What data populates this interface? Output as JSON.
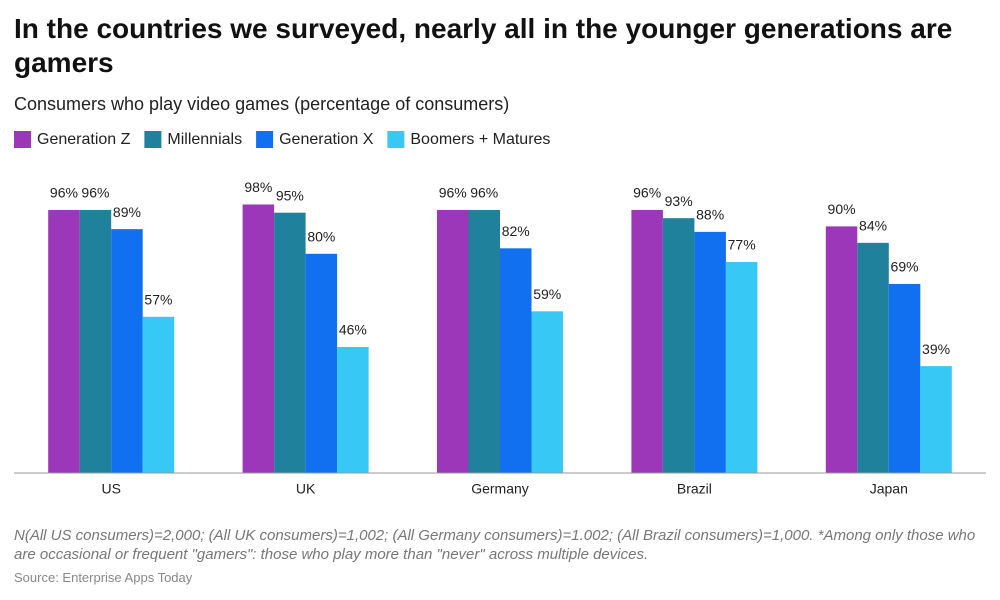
{
  "chart_data": {
    "type": "bar",
    "title": "In the countries we surveyed, nearly all in the younger generations are gamers",
    "subtitle": "Consumers who play video games (percentage of consumers)",
    "categories": [
      "US",
      "UK",
      "Germany",
      "Brazil",
      "Japan"
    ],
    "series": [
      {
        "name": "Generation Z",
        "color": "#9b37b8",
        "values": [
          96,
          98,
          96,
          96,
          90
        ],
        "value_labels": [
          "96%",
          "98%",
          "96%",
          "96%",
          "90%"
        ]
      },
      {
        "name": "Millennials",
        "color": "#1f819c",
        "values": [
          96,
          95,
          96,
          93,
          84
        ],
        "value_labels": [
          "96%",
          "95%",
          "96%",
          "93%",
          "84%"
        ]
      },
      {
        "name": "Generation X",
        "color": "#1170ef",
        "values": [
          89,
          80,
          82,
          88,
          69
        ],
        "value_labels": [
          "89%",
          "80%",
          "82%",
          "88%",
          "69%"
        ]
      },
      {
        "name": "Boomers + Matures",
        "color": "#37c8f6",
        "values": [
          57,
          46,
          59,
          77,
          39
        ],
        "value_labels": [
          "57%",
          "46%",
          "59%",
          "77%",
          "39%"
        ]
      }
    ],
    "ylim": [
      0,
      100
    ],
    "legend": "top-left",
    "note": "N(All US consumers)=2,000; (All UK consumers)=1,002; (All Germany consumers)=1.002; (All Brazil consumers)=1,000. *Among only those who are occasional or frequent \"gamers\": those who play more than \"never\" across multiple devices.",
    "source": "Source: Enterprise Apps Today"
  }
}
